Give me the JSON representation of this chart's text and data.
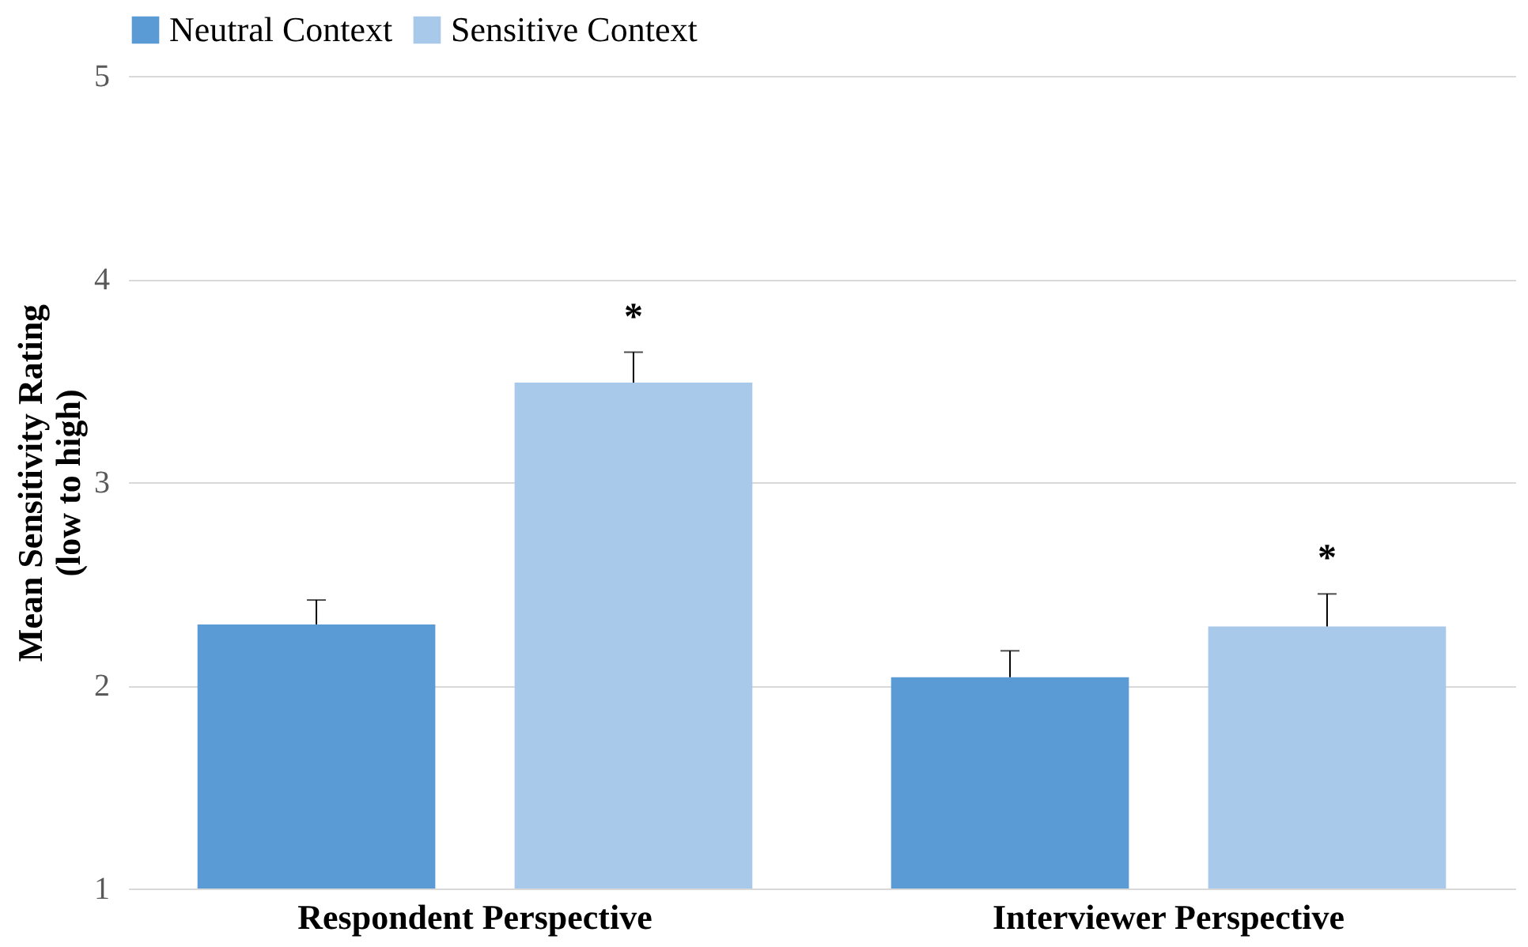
{
  "chart_data": {
    "type": "bar",
    "categories": [
      "Respondent Perspective",
      "Interviewer Perspective"
    ],
    "ylabel": "Mean Sensitivity Rating\n(low to high)",
    "series": [
      {
        "name": "Neutral Context",
        "color": "#5b9bd5",
        "values": [
          2.3,
          2.04
        ],
        "errors": [
          [
            2.3,
            2.42
          ],
          [
            2.04,
            2.17
          ]
        ]
      },
      {
        "name": "Sensitive Context",
        "color": "#a9c9ea",
        "values": [
          3.49,
          2.29
        ],
        "errors": [
          [
            3.49,
            3.64
          ],
          [
            2.29,
            2.45
          ]
        ]
      }
    ],
    "ylim": [
      1,
      5
    ],
    "yticks": [
      1,
      2,
      3,
      4,
      5
    ],
    "grid": "y",
    "legend": "top",
    "annotations": [
      "*",
      "*"
    ]
  }
}
